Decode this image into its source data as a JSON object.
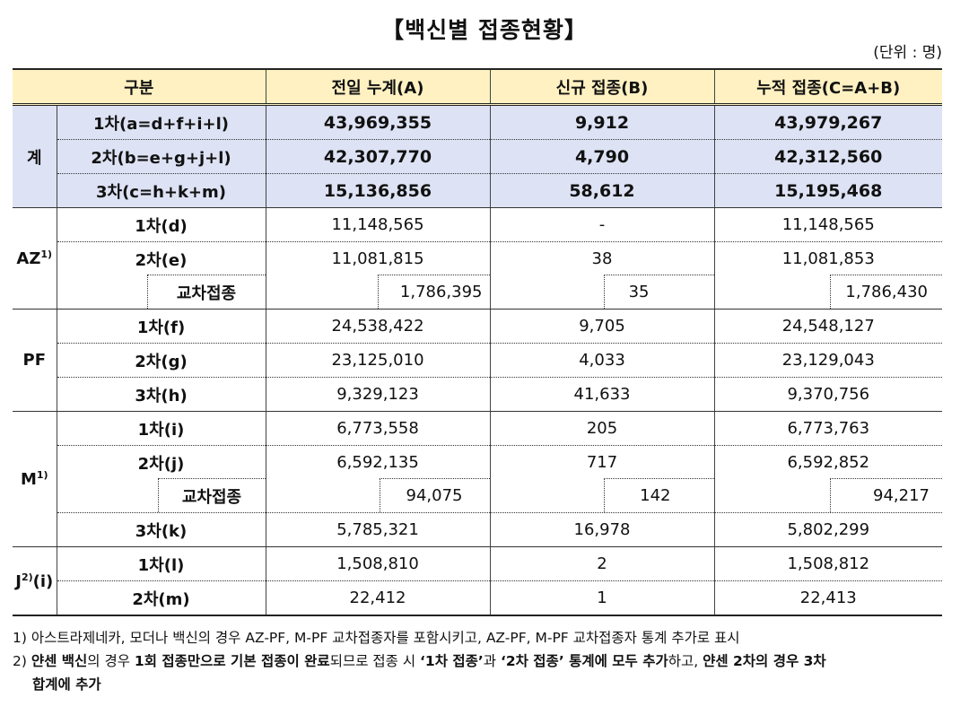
{
  "title": "【백신별 접종현황】",
  "unit": "(단위 : 명)",
  "header": {
    "category": "구분",
    "prev_total": "전일 누계(A)",
    "new": "신규 접종(B)",
    "cum": "누적 접종(C=A+B)"
  },
  "total": {
    "group": "계",
    "rows": [
      {
        "label": "1차(a=d+f+i+l)",
        "a": "43,969,355",
        "b": "9,912",
        "c": "43,979,267"
      },
      {
        "label": "2차(b=e+g+j+l)",
        "a": "42,307,770",
        "b": "4,790",
        "c": "42,312,560"
      },
      {
        "label": "3차(c=h+k+m)",
        "a": "15,136,856",
        "b": "58,612",
        "c": "15,195,468"
      }
    ]
  },
  "az": {
    "group": "AZ",
    "sup": "1)",
    "d1": {
      "label": "1차(d)",
      "a": "11,148,565",
      "b": "-",
      "c": "11,148,565"
    },
    "d2": {
      "label": "2차(e)",
      "a": "11,081,815",
      "b": "38",
      "c": "11,081,853"
    },
    "cross": {
      "label": "교차접종",
      "a": "1,786,395",
      "b": "35",
      "c": "1,786,430"
    }
  },
  "pf": {
    "group": "PF",
    "rows": [
      {
        "label": "1차(f)",
        "a": "24,538,422",
        "b": "9,705",
        "c": "24,548,127"
      },
      {
        "label": "2차(g)",
        "a": "23,125,010",
        "b": "4,033",
        "c": "23,129,043"
      },
      {
        "label": "3차(h)",
        "a": "9,329,123",
        "b": "41,633",
        "c": "9,370,756"
      }
    ]
  },
  "m": {
    "group": "M",
    "sup": "1)",
    "d1": {
      "label": "1차(i)",
      "a": "6,773,558",
      "b": "205",
      "c": "6,773,763"
    },
    "d2": {
      "label": "2차(j)",
      "a": "6,592,135",
      "b": "717",
      "c": "6,592,852"
    },
    "cross": {
      "label": "교차접종",
      "a": "94,075",
      "b": "142",
      "c": "94,217"
    },
    "d3": {
      "label": "3차(k)",
      "a": "5,785,321",
      "b": "16,978",
      "c": "5,802,299"
    }
  },
  "j": {
    "group": "J",
    "sup": "2)",
    "suffix": "(i)",
    "rows": [
      {
        "label": "1차(l)",
        "a": "1,508,810",
        "b": "2",
        "c": "1,508,812"
      },
      {
        "label": "2차(m)",
        "a": "22,412",
        "b": "1",
        "c": "22,413"
      }
    ]
  },
  "notes": {
    "n1": "1) 아스트라제네카, 모더나 백신의 경우 AZ-PF, M-PF 교차접종자를 포함시키고, AZ-PF, M-PF 교차접종자 통계 추가로 표시",
    "n2_p1": "2) ",
    "n2_b1": "얀센 백신",
    "n2_p2": "의 경우 ",
    "n2_b2": "1회 접종만으로 기본 접종이 완료",
    "n2_p3": "되므로 접종 시 ",
    "n2_b3": "‘1차 접종’",
    "n2_p4": "과 ",
    "n2_b4": "‘2차 접종’ 통계에 모두 추가",
    "n2_p5": "하고, ",
    "n2_b5": "얀센 2차의 경우 3차",
    "n2_b6": "합계에 추가"
  }
}
